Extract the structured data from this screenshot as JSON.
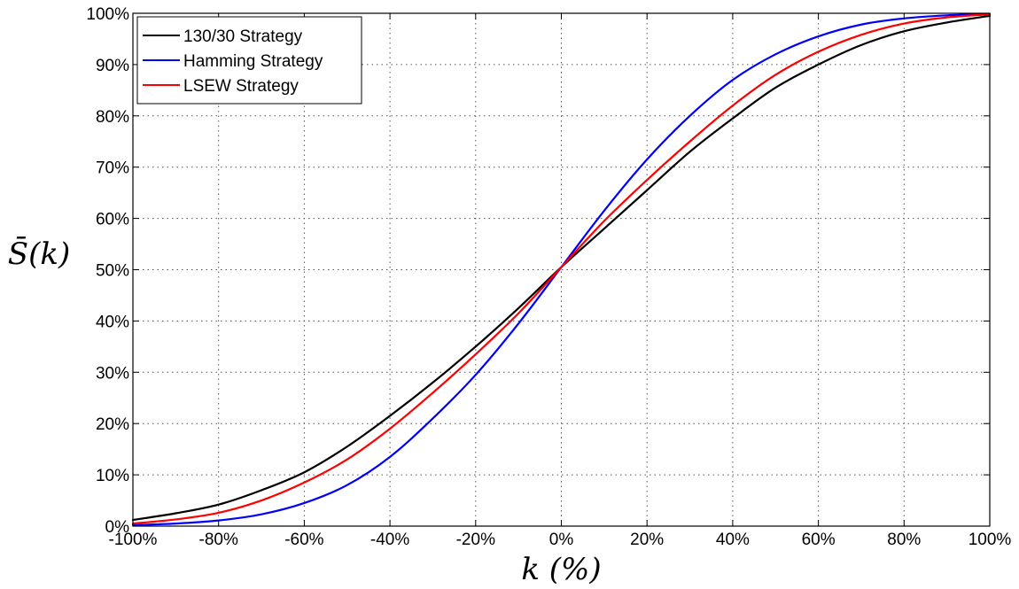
{
  "chart_data": {
    "type": "line",
    "xlabel": "k (%)",
    "ylabel": "S̄(k)",
    "xlim": [
      -100,
      100
    ],
    "ylim": [
      0,
      100
    ],
    "grid": true,
    "legend_position": "top-left",
    "x_ticks": [
      -100,
      -80,
      -60,
      -40,
      -20,
      0,
      20,
      40,
      60,
      80,
      100
    ],
    "y_ticks": [
      0,
      10,
      20,
      30,
      40,
      50,
      60,
      70,
      80,
      90,
      100
    ],
    "x_tick_labels": [
      "-100%",
      "-80%",
      "-60%",
      "-40%",
      "-20%",
      "0%",
      "20%",
      "40%",
      "60%",
      "80%",
      "100%"
    ],
    "y_tick_labels": [
      "0%",
      "10%",
      "20%",
      "30%",
      "40%",
      "50%",
      "60%",
      "70%",
      "80%",
      "90%",
      "100%"
    ],
    "x": [
      -100,
      -90,
      -80,
      -70,
      -60,
      -50,
      -40,
      -30,
      -20,
      -10,
      0,
      10,
      20,
      30,
      40,
      50,
      60,
      70,
      80,
      90,
      100
    ],
    "series": [
      {
        "name": "130/30 Strategy",
        "color": "#000000",
        "values": [
          1.2,
          2.5,
          4.2,
          7.0,
          10.5,
          15.5,
          21.5,
          28.0,
          35.0,
          42.5,
          50.5,
          58.0,
          65.5,
          73.0,
          79.5,
          85.5,
          90.0,
          93.8,
          96.5,
          98.2,
          99.5
        ]
      },
      {
        "name": "Hamming Strategy",
        "color": "#0000ff",
        "values": [
          0.2,
          0.5,
          1.1,
          2.3,
          4.5,
          8.0,
          13.5,
          21.0,
          29.5,
          39.5,
          50.5,
          61.5,
          71.5,
          80.0,
          87.0,
          92.0,
          95.5,
          97.8,
          99.0,
          99.6,
          99.9
        ]
      },
      {
        "name": "LSEW Strategy",
        "color": "#ff0000",
        "values": [
          0.5,
          1.3,
          2.6,
          5.0,
          8.5,
          13.0,
          19.0,
          26.0,
          33.5,
          41.5,
          50.5,
          59.5,
          67.5,
          75.0,
          82.0,
          88.0,
          92.5,
          95.8,
          98.0,
          99.2,
          99.8
        ]
      }
    ]
  }
}
